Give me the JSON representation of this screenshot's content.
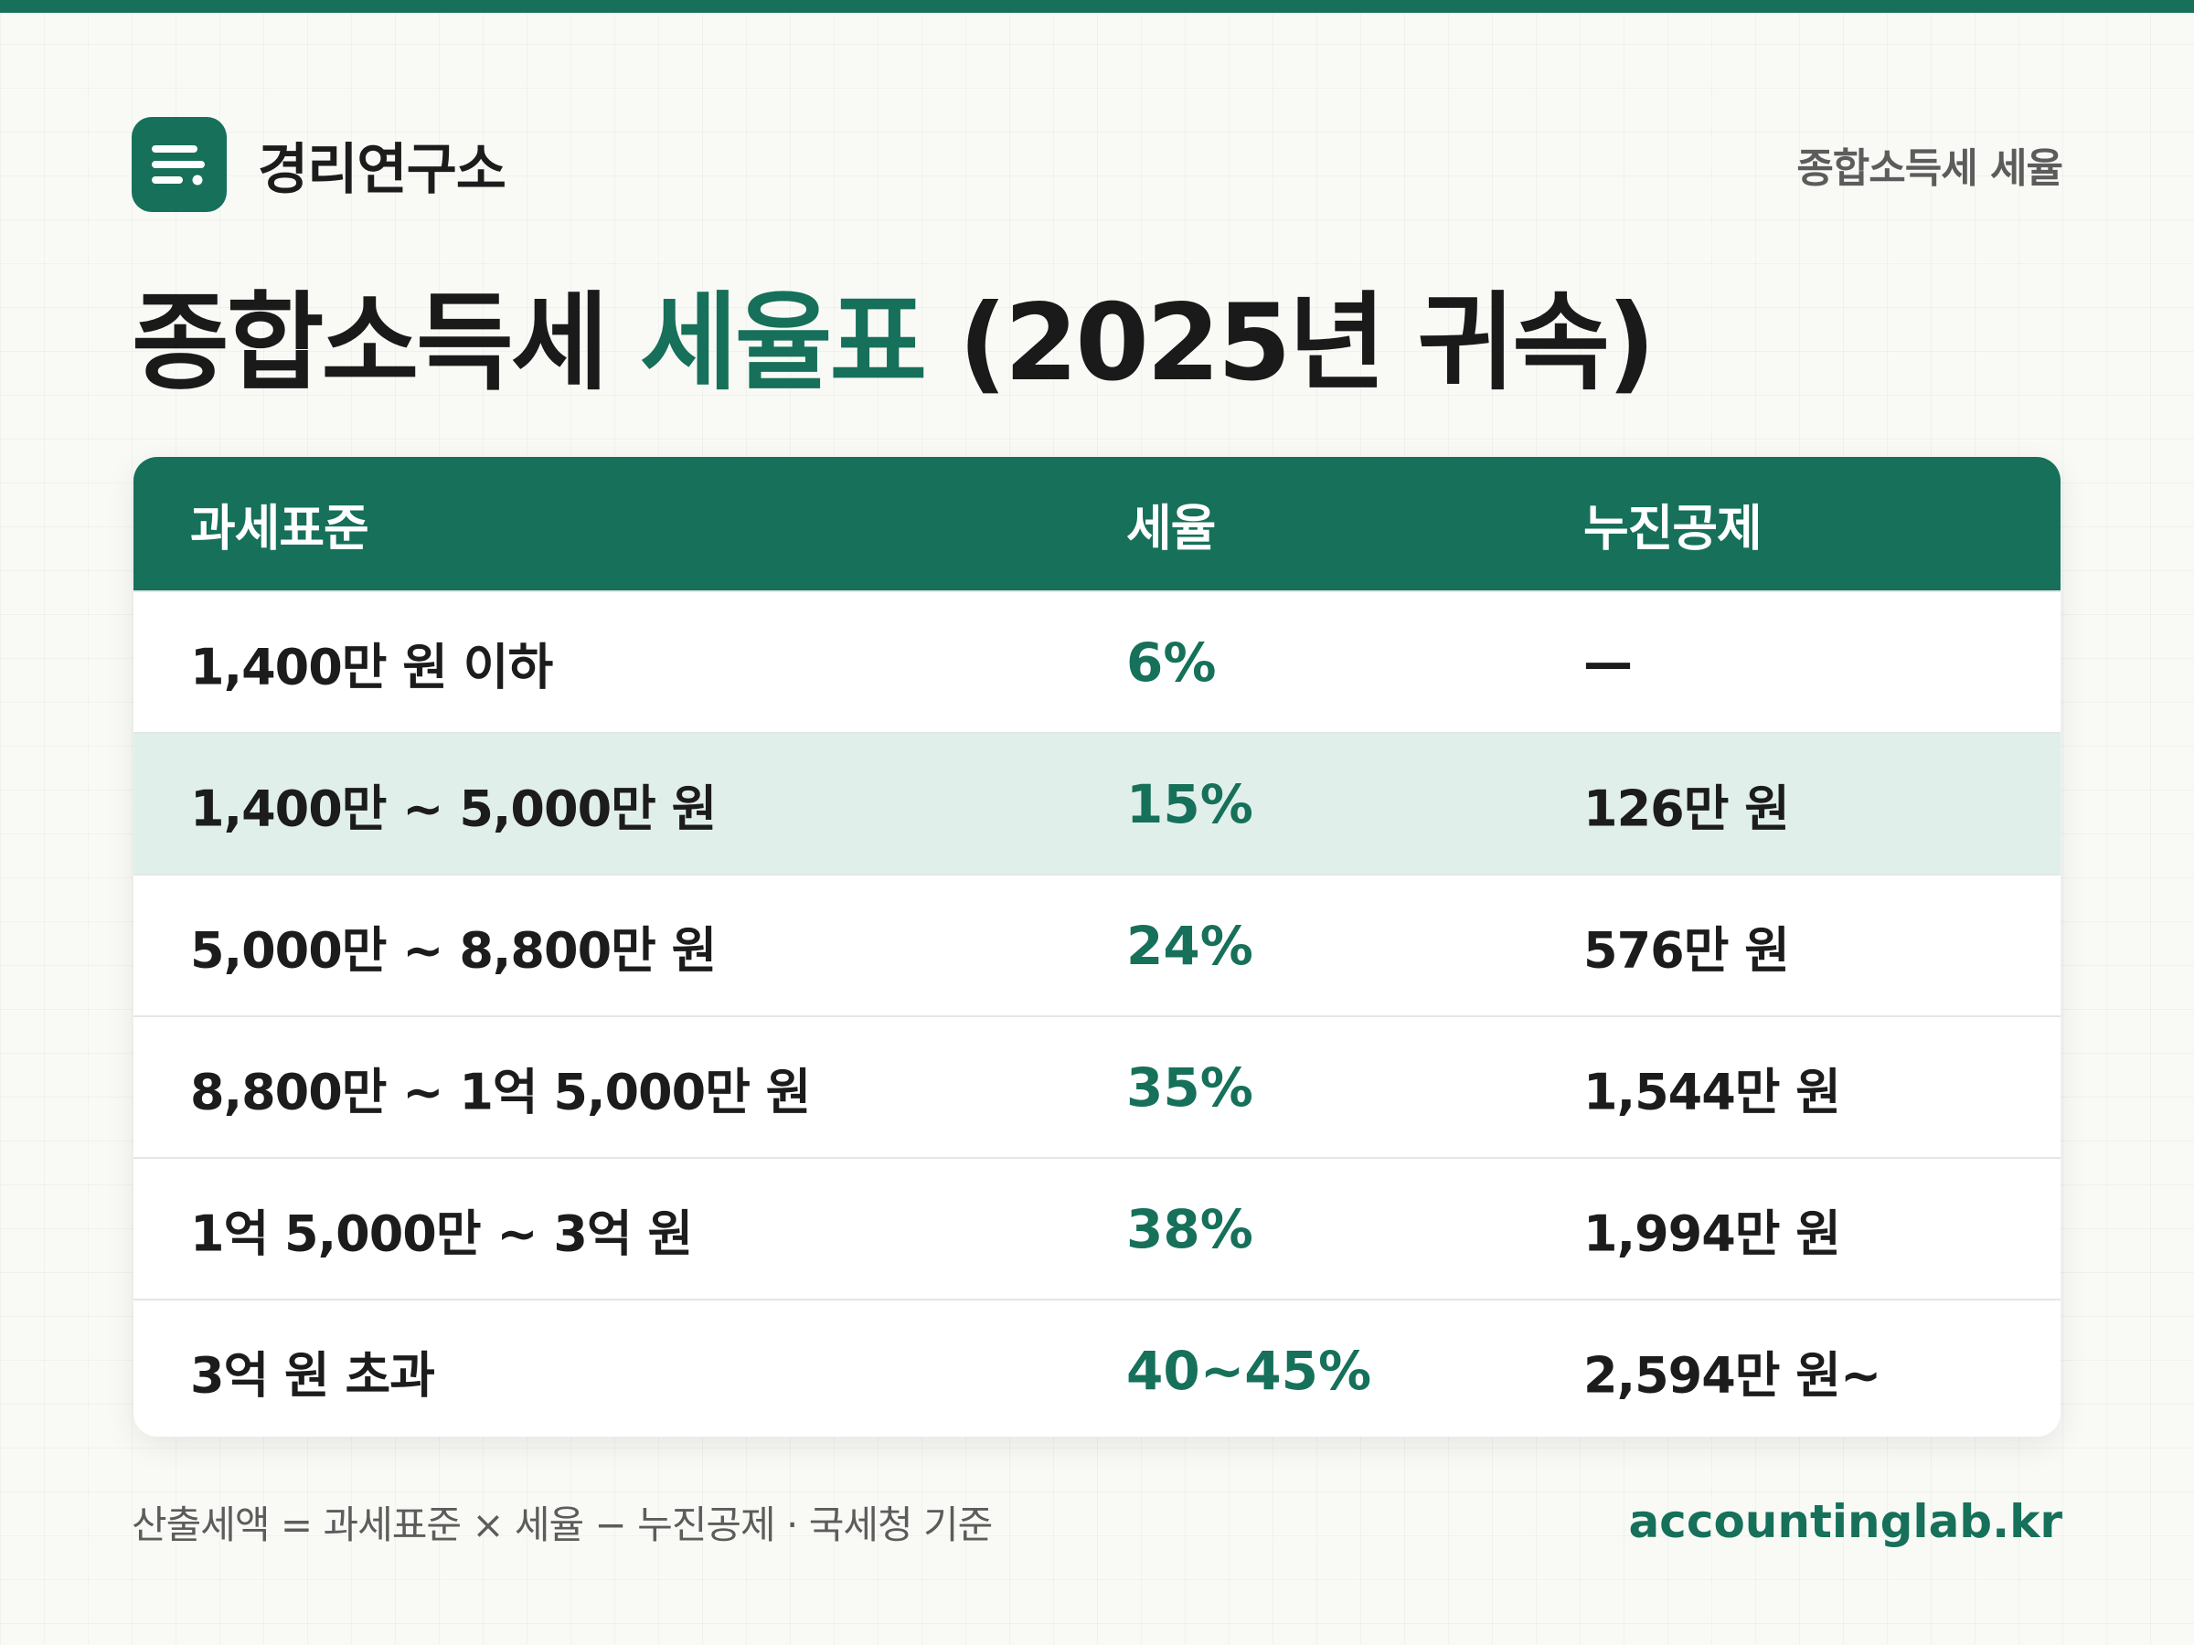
{
  "brand": {
    "name": "경리연구소",
    "logo_icon": "document-lines-icon",
    "accent_color": "#16705a"
  },
  "header": {
    "topic": "종합소득세 세율"
  },
  "title": {
    "part1": "종합소득세 ",
    "accent": "세율표",
    "part2": " (2025년 귀속)"
  },
  "table": {
    "columns": [
      "과세표준",
      "세율",
      "누진공제"
    ],
    "rows": [
      {
        "bracket": "1,400만 원 이하",
        "rate": "6%",
        "deduction": "—"
      },
      {
        "bracket": "1,400만 ~ 5,000만 원",
        "rate": "15%",
        "deduction": "126만 원"
      },
      {
        "bracket": "5,000만 ~ 8,800만 원",
        "rate": "24%",
        "deduction": "576만 원"
      },
      {
        "bracket": "8,800만 ~ 1억 5,000만 원",
        "rate": "35%",
        "deduction": "1,544만 원"
      },
      {
        "bracket": "1억 5,000만 ~ 3억 원",
        "rate": "38%",
        "deduction": "1,994만 원"
      },
      {
        "bracket": "3억 원 초과",
        "rate": "40~45%",
        "deduction": "2,594만 원~"
      }
    ],
    "highlight_color": "#e1efea"
  },
  "footer": {
    "note": "산출세액 = 과세표준 × 세율 − 누진공제 · 국세청 기준",
    "site": "accountinglab.kr"
  }
}
